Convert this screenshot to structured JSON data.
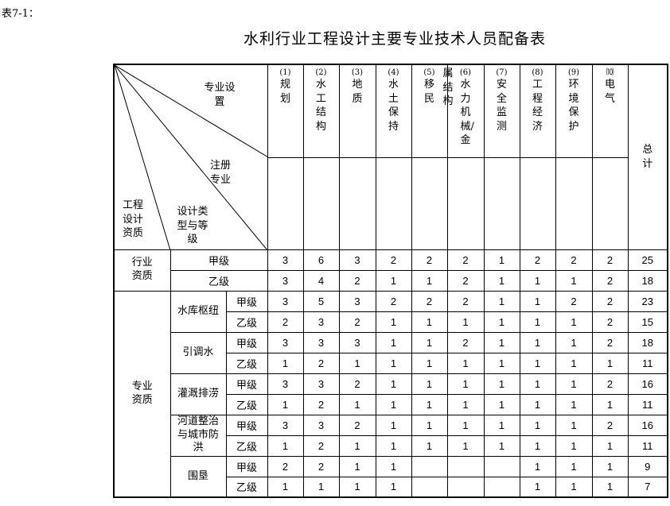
{
  "caption": "表7-1：",
  "title": "水利行业工程设计主要专业技术人员配备表",
  "corner": {
    "specialty_setting": "专业设置",
    "registered_specialty": "注册专业",
    "design_type_grade": "设计类型与等级",
    "design_qualification": "工程设计资质"
  },
  "columns": [
    {
      "no": "(1)",
      "label": "规划"
    },
    {
      "no": "(2)",
      "label": "水工结构"
    },
    {
      "no": "(3)",
      "label": "地质"
    },
    {
      "no": "(4)",
      "label": "水土保持"
    },
    {
      "no": "(5)",
      "label": "移民"
    },
    {
      "no": "(6)",
      "label": "水力机械/金",
      "label_cont": "属结构"
    },
    {
      "no": "(7)",
      "label": "安全监测"
    },
    {
      "no": "(8)",
      "label": "工程经济"
    },
    {
      "no": "(9)",
      "label": "环境保护"
    },
    {
      "no": "⑽",
      "label": "电气"
    }
  ],
  "total_label": "总计",
  "industry": {
    "label": "行业资质",
    "rows": [
      {
        "grade": "甲级",
        "values": [
          "3",
          "6",
          "3",
          "2",
          "2",
          "2",
          "1",
          "2",
          "2",
          "2"
        ],
        "total": "25"
      },
      {
        "grade": "乙级",
        "values": [
          "3",
          "4",
          "2",
          "1",
          "1",
          "2",
          "1",
          "1",
          "1",
          "2"
        ],
        "total": "18"
      }
    ]
  },
  "specialty": {
    "label": "专业资质",
    "groups": [
      {
        "type": "水库枢纽",
        "rows": [
          {
            "grade": "甲级",
            "values": [
              "3",
              "5",
              "3",
              "2",
              "2",
              "2",
              "1",
              "1",
              "2",
              "2"
            ],
            "total": "23"
          },
          {
            "grade": "乙级",
            "values": [
              "2",
              "3",
              "2",
              "1",
              "1",
              "1",
              "1",
              "1",
              "1",
              "2"
            ],
            "total": "15"
          }
        ]
      },
      {
        "type": "引调水",
        "rows": [
          {
            "grade": "甲级",
            "values": [
              "3",
              "3",
              "3",
              "1",
              "1",
              "2",
              "1",
              "1",
              "1",
              "2"
            ],
            "total": "18"
          },
          {
            "grade": "乙级",
            "values": [
              "1",
              "2",
              "1",
              "1",
              "1",
              "1",
              "1",
              "1",
              "1",
              "1"
            ],
            "total": "11"
          }
        ]
      },
      {
        "type": "灌溉排涝",
        "rows": [
          {
            "grade": "甲级",
            "values": [
              "3",
              "3",
              "2",
              "1",
              "1",
              "1",
              "1",
              "1",
              "1",
              "2"
            ],
            "total": "16"
          },
          {
            "grade": "乙级",
            "values": [
              "1",
              "2",
              "1",
              "1",
              "1",
              "1",
              "1",
              "1",
              "1",
              "1"
            ],
            "total": "11"
          }
        ]
      },
      {
        "type": "河道整治与城市防洪",
        "rows": [
          {
            "grade": "甲级",
            "values": [
              "3",
              "3",
              "2",
              "1",
              "1",
              "1",
              "1",
              "1",
              "1",
              "2"
            ],
            "total": "16"
          },
          {
            "grade": "乙级",
            "values": [
              "1",
              "2",
              "1",
              "1",
              "1",
              "1",
              "1",
              "1",
              "1",
              "1"
            ],
            "total": "11"
          }
        ]
      },
      {
        "type": "围垦",
        "rows": [
          {
            "grade": "甲级",
            "values": [
              "2",
              "2",
              "1",
              "1",
              "",
              "",
              "",
              "1",
              "1",
              "1"
            ],
            "total": "9"
          },
          {
            "grade": "乙级",
            "values": [
              "1",
              "1",
              "1",
              "1",
              "",
              "",
              "",
              "1",
              "1",
              "1"
            ],
            "total": "7"
          }
        ]
      }
    ]
  }
}
